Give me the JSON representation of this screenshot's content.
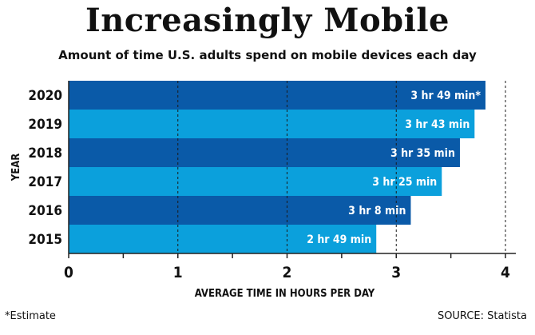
{
  "header": {
    "title": "Increasingly Mobile",
    "subtitle": "Amount of time U.S. adults spend on mobile devices each day"
  },
  "footer": {
    "footnote": "*Estimate",
    "source": "SOURCE: Statista"
  },
  "colors": {
    "dark_bar": "#0a5aa8",
    "light_bar": "#0ba0dc",
    "axis": "#222222",
    "text": "#111111"
  },
  "chart_data": {
    "type": "bar",
    "orientation": "horizontal",
    "xlabel": "AVERAGE TIME IN HOURS PER DAY",
    "ylabel": "YEAR",
    "xlim": [
      0,
      4
    ],
    "x_ticks": [
      "0",
      "1",
      "2",
      "3",
      "4"
    ],
    "grid": "dashed vertical lines at each whole hour",
    "categories": [
      "2020",
      "2019",
      "2018",
      "2017",
      "2016",
      "2015"
    ],
    "values": [
      3.817,
      3.717,
      3.583,
      3.417,
      3.133,
      2.817
    ],
    "data_labels": [
      "3 hr 49 min*",
      "3 hr 43 min",
      "3 hr 35 min",
      "3 hr 25 min",
      "3 hr 8 min",
      "2 hr 49 min"
    ]
  }
}
